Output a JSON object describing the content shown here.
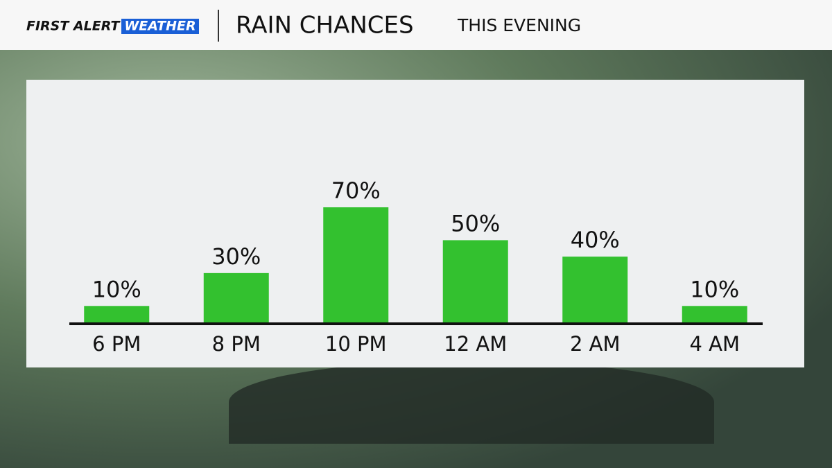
{
  "header": {
    "brand": "FIRST ALERT",
    "brand_highlight": "WEATHER",
    "title": "RAIN CHANCES",
    "subtitle": "THIS EVENING"
  },
  "chart_data": {
    "type": "bar",
    "categories": [
      "6 PM",
      "8 PM",
      "10 PM",
      "12 AM",
      "2 AM",
      "4 AM"
    ],
    "values": [
      10,
      30,
      70,
      50,
      40,
      10
    ],
    "value_labels": [
      "10%",
      "30%",
      "70%",
      "50%",
      "40%",
      "10%"
    ],
    "color": "#33c12f"
  }
}
